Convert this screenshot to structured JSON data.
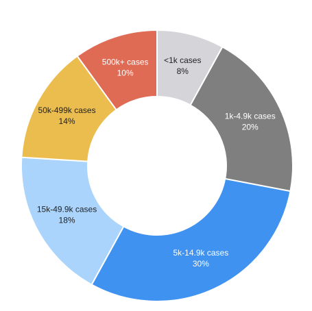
{
  "chart_data": {
    "type": "donut",
    "categories": [
      "<1k cases",
      "1k-4.9k cases",
      "5k-14.9k cases",
      "15k-49.9k cases",
      "50k-499k cases",
      "500k+ cases"
    ],
    "values": [
      8,
      20,
      30,
      18,
      14,
      10
    ],
    "value_labels": [
      "8%",
      "20%",
      "30%",
      "18%",
      "14%",
      "10%"
    ],
    "colors": [
      "#d5d4d9",
      "#7f7f7f",
      "#3f92f0",
      "#aad4fb",
      "#ebbd4e",
      "#e06b55"
    ],
    "label_colors": [
      "#222222",
      "#ffffff",
      "#ffffff",
      "#222222",
      "#222222",
      "#ffffff"
    ]
  }
}
